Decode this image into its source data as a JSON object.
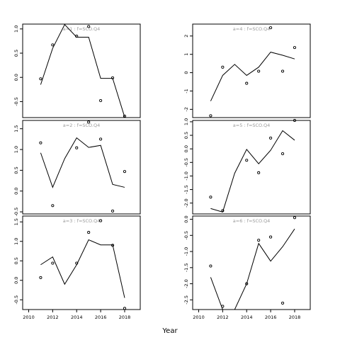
{
  "chart_data": {
    "type": "line",
    "xlabel": "Year",
    "panels": [
      {
        "title": "a=1 : f=SCO.Q4",
        "xlim": [
          2009.5,
          2019.3
        ],
        "ylim": [
          -0.83,
          1.1
        ],
        "yticks": [
          -0.5,
          0.0,
          0.5,
          1.0
        ],
        "ytick_labels": [
          "-0.5",
          "0.0",
          "0.5",
          "1.0"
        ],
        "xticks": [],
        "xtick_labels": [],
        "line_x": [
          2011,
          2012,
          2013,
          2014,
          2015,
          2016,
          2017,
          2018
        ],
        "line_y": [
          -0.15,
          0.6,
          1.09,
          0.83,
          0.83,
          -0.02,
          -0.02,
          -0.82
        ],
        "points_x": [
          2011,
          2012,
          2014,
          2015,
          2016,
          2017,
          2018
        ],
        "points_y": [
          -0.03,
          0.67,
          0.85,
          1.05,
          -0.48,
          -0.01,
          -0.8
        ]
      },
      {
        "title": "a=4 : f=SCO.Q4",
        "xlim": [
          2009.5,
          2019.3
        ],
        "ylim": [
          -2.45,
          2.65
        ],
        "yticks": [
          -2,
          -1,
          0,
          1,
          2
        ],
        "ytick_labels": [
          "-2",
          "-1",
          "0",
          "1",
          "2"
        ],
        "xticks": [],
        "xtick_labels": [],
        "line_x": [
          2011,
          2012,
          2013,
          2014,
          2015,
          2016,
          2017,
          2018
        ],
        "line_y": [
          -1.55,
          -0.15,
          0.45,
          -0.15,
          0.3,
          1.12,
          0.95,
          0.75
        ],
        "points_x": [
          2011,
          2012,
          2014,
          2015,
          2016,
          2017,
          2018
        ],
        "points_y": [
          -2.35,
          0.3,
          -0.58,
          0.08,
          2.45,
          0.08,
          1.37
        ]
      },
      {
        "title": "a=2 : f=SCO.Q4",
        "xlim": [
          2009.5,
          2019.3
        ],
        "ylim": [
          -0.55,
          1.7
        ],
        "yticks": [
          -0.5,
          0.0,
          0.5,
          1.0,
          1.5
        ],
        "ytick_labels": [
          "-0.5",
          "0.0",
          "0.5",
          "1.0",
          "1.5"
        ],
        "xticks": [],
        "xtick_labels": [],
        "line_x": [
          2011,
          2012,
          2013,
          2014,
          2015,
          2016,
          2017,
          2018
        ],
        "line_y": [
          0.92,
          0.09,
          0.78,
          1.28,
          1.05,
          1.1,
          0.16,
          0.09
        ],
        "points_x": [
          2011,
          2012,
          2014,
          2015,
          2016,
          2017,
          2018
        ],
        "points_y": [
          1.16,
          -0.35,
          1.04,
          1.66,
          1.25,
          -0.48,
          0.47
        ]
      },
      {
        "title": "a=5 : f=SCO.Q4",
        "xlim": [
          2009.5,
          2019.3
        ],
        "ylim": [
          -2.4,
          1.05
        ],
        "yticks": [
          -2.0,
          -1.5,
          -1.0,
          -0.5,
          0.0,
          0.5,
          1.0
        ],
        "ytick_labels": [
          "-2.0",
          "-1.5",
          "-1.0",
          "-0.5",
          "0.0",
          "0.5",
          "1.0"
        ],
        "xticks": [],
        "xtick_labels": [],
        "line_x": [
          2011,
          2012,
          2013,
          2014,
          2015,
          2016,
          2017,
          2018
        ],
        "line_y": [
          -2.2,
          -2.33,
          -0.9,
          -0.02,
          -0.55,
          -0.05,
          0.67,
          0.32
        ],
        "points_x": [
          2011,
          2012,
          2014,
          2015,
          2016,
          2017,
          2018
        ],
        "points_y": [
          -1.78,
          -2.28,
          -0.42,
          -0.88,
          0.4,
          -0.18,
          1.05
        ]
      },
      {
        "title": "a=3 : f=SCO.Q4",
        "xlim": [
          2009.5,
          2019.3
        ],
        "ylim": [
          -0.75,
          1.65
        ],
        "yticks": [
          -0.5,
          0.0,
          0.5,
          1.0,
          1.5
        ],
        "ytick_labels": [
          "-0.5",
          "0.0",
          "0.5",
          "1.0",
          "1.5"
        ],
        "xticks": [
          2010,
          2012,
          2014,
          2016,
          2018
        ],
        "xtick_labels": [
          "2010",
          "2012",
          "2014",
          "2016",
          "2018"
        ],
        "line_x": [
          2011,
          2012,
          2013,
          2014,
          2015,
          2016,
          2017,
          2018
        ],
        "line_y": [
          0.4,
          0.6,
          -0.1,
          0.4,
          1.04,
          0.91,
          0.91,
          -0.45
        ],
        "points_x": [
          2011,
          2012,
          2014,
          2015,
          2016,
          2017,
          2018
        ],
        "points_y": [
          0.07,
          0.44,
          0.44,
          1.23,
          1.53,
          0.9,
          -0.72
        ]
      },
      {
        "title": "a=6 : f=SCO.Q4",
        "xlim": [
          2009.5,
          2019.3
        ],
        "ylim": [
          -2.8,
          0.1
        ],
        "yticks": [
          -2.5,
          -2.0,
          -1.5,
          -1.0,
          -0.5,
          0.0
        ],
        "ytick_labels": [
          "-2.5",
          "-2.0",
          "-1.5",
          "-1.0",
          "-0.5",
          "0.0"
        ],
        "xticks": [
          2010,
          2012,
          2014,
          2016,
          2018
        ],
        "xtick_labels": [
          "2010",
          "2012",
          "2014",
          "2016",
          "2018"
        ],
        "line_x": [
          2011,
          2012,
          2013,
          2014,
          2015,
          2016,
          2017,
          2018
        ],
        "line_y": [
          -1.8,
          -2.8,
          -2.8,
          -2.0,
          -0.75,
          -1.3,
          -0.85,
          -0.3
        ],
        "points_x": [
          2011,
          2012,
          2014,
          2015,
          2016,
          2017,
          2018
        ],
        "points_y": [
          -1.45,
          -2.7,
          -2.0,
          -0.65,
          -0.55,
          -2.6,
          0.05
        ]
      }
    ]
  }
}
